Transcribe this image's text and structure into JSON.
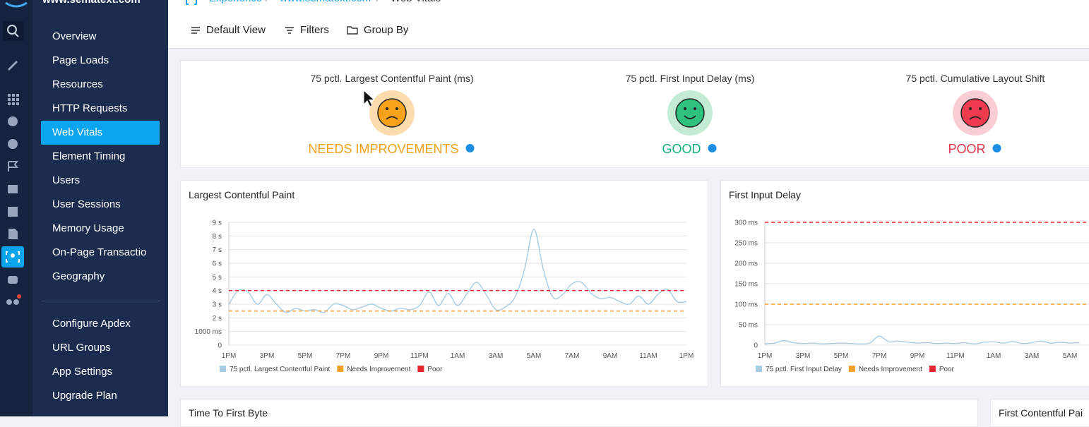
{
  "sidebar": {
    "site": "www.sematext.com",
    "nav": [
      "Overview",
      "Page Loads",
      "Resources",
      "HTTP Requests",
      "Web Vitals",
      "Element Timing",
      "Users",
      "User Sessions",
      "Memory Usage",
      "On-Page Transactio",
      "Geography"
    ],
    "active": 4,
    "settings": [
      "Configure Apdex",
      "URL Groups",
      "App Settings",
      "Upgrade Plan"
    ]
  },
  "breadcrumbs": [
    "Experience",
    "www.sematext.com",
    "Web Vitals"
  ],
  "toolbar": [
    "Default View",
    "Filters",
    "Group By"
  ],
  "vitals": [
    {
      "label": "75 pctl. Largest Contentful Paint (ms)",
      "status": "NEEDS IMPROVEMENTS",
      "color": "#f0a11c"
    },
    {
      "label": "75 pctl. First Input Delay (ms)",
      "status": "GOOD",
      "color": "#16b27c"
    },
    {
      "label": "75 pctl. Cumulative Layout Shift",
      "status": "POOR",
      "color": "#e0334b"
    }
  ],
  "chart_data": [
    {
      "type": "line",
      "title": "Largest Contentful Paint",
      "categories": [
        "1PM",
        null,
        null,
        null,
        "3PM",
        null,
        null,
        null,
        "5PM",
        null,
        null,
        null,
        "7PM",
        null,
        null,
        null,
        "9PM",
        null,
        null,
        null,
        "11PM",
        null,
        null,
        null,
        "1AM",
        null,
        null,
        null,
        "3AM",
        null,
        null,
        null,
        "5AM",
        null,
        null,
        null,
        "7AM",
        null,
        null,
        null,
        "9AM",
        null,
        null,
        null,
        "11AM",
        null,
        null,
        null,
        "1PM"
      ],
      "series": [
        {
          "name": "75 pctl. Largest Contentful Paint",
          "color": "#a6cde4",
          "values": [
            3000,
            4000,
            3900,
            3000,
            3700,
            3000,
            2400,
            2700,
            2500,
            2600,
            2400,
            3000,
            2900,
            2600,
            2800,
            3000,
            2700,
            2500,
            2700,
            2600,
            2900,
            3900,
            2900,
            3800,
            2900,
            3800,
            4600,
            3700,
            2600,
            2800,
            3500,
            5500,
            8500,
            5500,
            3500,
            3700,
            4500,
            4600,
            3800,
            3400,
            3500,
            3200,
            3000,
            3600,
            3000,
            3700,
            4100,
            3200,
            3200
          ]
        }
      ],
      "thresholds": [
        {
          "name": "Needs Improvement",
          "value": 2500,
          "color": "#f5a02a"
        },
        {
          "name": "Poor",
          "value": 4000,
          "color": "#e0282e"
        }
      ],
      "ylim": [
        0,
        9000
      ],
      "yticks": [
        0,
        {
          "value": 1000,
          "label": "1000 ms"
        },
        {
          "value": 2000,
          "label": "2 s"
        },
        {
          "value": 3000,
          "label": "3 s"
        },
        {
          "value": 4000,
          "label": "4 s"
        },
        {
          "value": 5000,
          "label": "5 s"
        },
        {
          "value": 6000,
          "label": "6 s"
        },
        {
          "value": 7000,
          "label": "7 s"
        },
        {
          "value": 8000,
          "label": "8 s"
        },
        {
          "value": 9000,
          "label": "9 s"
        }
      ],
      "grid": true
    },
    {
      "type": "line",
      "title": "First Input Delay",
      "categories": [
        "1PM",
        null,
        null,
        null,
        "3PM",
        null,
        null,
        null,
        "5PM",
        null,
        null,
        null,
        "7PM",
        null,
        null,
        null,
        "9PM",
        null,
        null,
        null,
        "11PM",
        null,
        null,
        null,
        "1AM",
        null,
        null,
        null,
        "3AM",
        null,
        null,
        null,
        "5AM",
        null
      ],
      "series": [
        {
          "name": "75 pctl. First Input Delay",
          "color": "#a6cde4",
          "values": [
            3,
            5,
            11,
            6,
            4,
            5,
            3,
            4,
            5,
            4,
            3,
            5,
            22,
            8,
            10,
            7,
            5,
            6,
            4,
            5,
            4,
            6,
            3,
            7,
            8,
            5,
            9,
            4,
            6,
            10,
            5,
            7,
            5,
            6
          ]
        }
      ],
      "thresholds": [
        {
          "name": "Needs Improvement",
          "value": 100,
          "color": "#f5a02a"
        },
        {
          "name": "Poor",
          "value": 300,
          "color": "#e0282e"
        }
      ],
      "ylim": [
        0,
        300
      ],
      "yticks": [
        0,
        {
          "value": 50,
          "label": "50 ms"
        },
        {
          "value": 100,
          "label": "100 ms"
        },
        {
          "value": 150,
          "label": "150 ms"
        },
        {
          "value": 200,
          "label": "200 ms"
        },
        {
          "value": 250,
          "label": "250 ms"
        },
        {
          "value": 300,
          "label": "300 ms"
        }
      ],
      "grid": true
    }
  ],
  "cards": [
    "Time To First Byte",
    "First Contentful Pai"
  ]
}
